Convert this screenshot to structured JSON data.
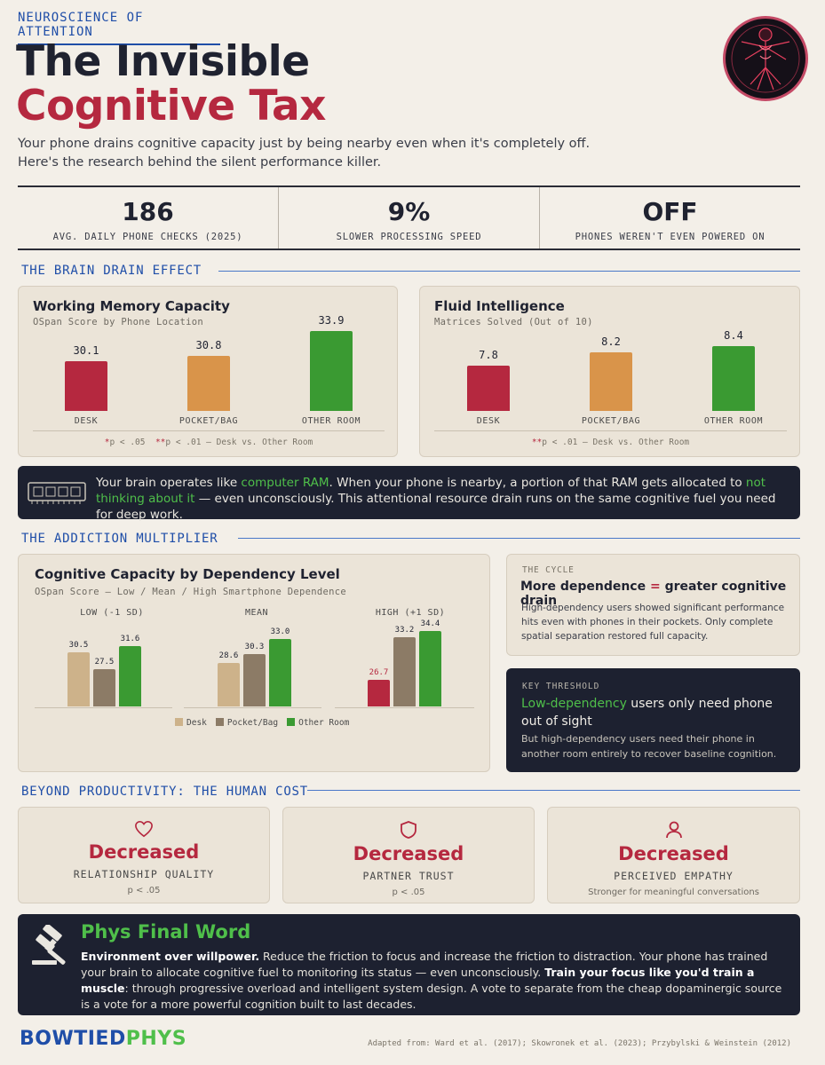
{
  "header": {
    "kicker": "NEUROSCIENCE OF ATTENTION",
    "title_line1": "The Invisible",
    "title_line2": "Cognitive Tax",
    "subtitle": "Your phone drains cognitive capacity just by being nearby even when it's completely off. Here's the research behind the silent performance killer."
  },
  "stats": [
    {
      "value": "186",
      "label": "AVG. DAILY PHONE CHECKS (2025)",
      "color": "#b5283f"
    },
    {
      "value": "9%",
      "label": "SLOWER PROCESSING SPEED",
      "color": "#1f4ea8"
    },
    {
      "value": "OFF",
      "label": "PHONES WEREN'T EVEN POWERED ON",
      "color": "#b5283f"
    }
  ],
  "sections": {
    "brain_drain": "THE BRAIN DRAIN EFFECT",
    "addiction": "THE ADDICTION MULTIPLIER",
    "beyond": "BEYOND PRODUCTIVITY: THE HUMAN COST"
  },
  "colors": {
    "desk": "#b5283f",
    "pocket": "#d9944a",
    "other": "#3a9a32",
    "g_desk": "#cdb28a",
    "g_pocket": "#8c7b66",
    "g_other": "#3a9a32",
    "g_red": "#b5283f"
  },
  "chart_data": [
    {
      "type": "bar",
      "title": "Working Memory Capacity",
      "subtitle": "OSpan Score by Phone Location",
      "categories": [
        "DESK",
        "POCKET/BAG",
        "OTHER ROOM"
      ],
      "values": [
        30.1,
        30.8,
        33.9
      ],
      "value_labels": [
        "30.1",
        "30.8",
        "33.9"
      ],
      "footnote": {
        "s1": "*",
        "t1": "p < .05",
        "s2": "**",
        "t2": "p < .01 — Desk vs. Other Room"
      }
    },
    {
      "type": "bar",
      "title": "Fluid Intelligence",
      "subtitle": "Matrices Solved (Out of 10)",
      "categories": [
        "DESK",
        "POCKET/BAG",
        "OTHER ROOM"
      ],
      "values": [
        7.8,
        8.2,
        8.4
      ],
      "value_labels": [
        "7.8",
        "8.2",
        "8.4"
      ],
      "footnote": {
        "s2": "**",
        "t2": "p < .01 — Desk vs. Other Room"
      }
    },
    {
      "type": "bar",
      "title": "Cognitive Capacity by Dependency Level",
      "subtitle": "OSpan Score — Low / Mean / High Smartphone Dependence",
      "categories": [
        "LOW (-1 SD)",
        "MEAN",
        "HIGH (+1 SD)"
      ],
      "series": [
        {
          "name": "Desk",
          "values": [
            30.5,
            28.6,
            26.7
          ],
          "labels": [
            "30.5",
            "28.6",
            "26.7"
          ]
        },
        {
          "name": "Pocket/Bag",
          "values": [
            27.5,
            30.3,
            33.2
          ],
          "labels": [
            "27.5",
            "30.3",
            "33.2"
          ]
        },
        {
          "name": "Other Room",
          "values": [
            31.6,
            33.0,
            34.4
          ],
          "labels": [
            "31.6",
            "33.0",
            "34.4"
          ]
        }
      ]
    }
  ],
  "ram_box": {
    "t1": "Your brain operates like ",
    "g1": "computer RAM",
    "t2": ". When your phone is nearby, a portion of that RAM gets allocated to ",
    "g2": "not thinking about it",
    "t3": " — even unconsciously. This attentional resource drain runs on the same cognitive fuel you need for deep work."
  },
  "cycle": {
    "kicker": "THE CYCLE",
    "title_a": "More dependence ",
    "title_eq": "=",
    "title_b": " greater cognitive drain",
    "body": "High-dependency users showed significant performance hits even with phones in their pockets. Only complete spatial separation restored full capacity."
  },
  "threshold": {
    "kicker": "KEY THRESHOLD",
    "title_g": "Low-dependency",
    "title_rest": " users only need phone out of sight",
    "body": "But high-dependency users need their phone in another room entirely to recover baseline cognition."
  },
  "human_cost": [
    {
      "icon": "heart-icon",
      "value": "Decreased",
      "label": "RELATIONSHIP QUALITY",
      "sub": "p < .05"
    },
    {
      "icon": "shield-icon",
      "value": "Decreased",
      "label": "PARTNER TRUST",
      "sub": "p < .05"
    },
    {
      "icon": "person-icon",
      "value": "Decreased",
      "label": "PERCEIVED EMPATHY",
      "sub": "Stronger for meaningful conversations"
    }
  ],
  "final": {
    "title": "Phys Final Word",
    "b1": "Environment over willpower.",
    "t1": " Reduce the friction to focus and increase the friction to distraction. Your phone has trained your brain to allocate cognitive fuel to monitoring its status — even unconsciously. ",
    "b2": "Train your focus like you'd train a muscle",
    "t2": ": through progressive overload and intelligent system design. A vote to separate from the cheap dopaminergic source is a vote for a more powerful cognition built to last decades."
  },
  "footer": {
    "logo_a": "BOWTIED",
    "logo_b": "PHYS",
    "citation": "Adapted from: Ward et al. (2017); Skowronek et al. (2023); Przybylski & Weinstein (2012)"
  }
}
